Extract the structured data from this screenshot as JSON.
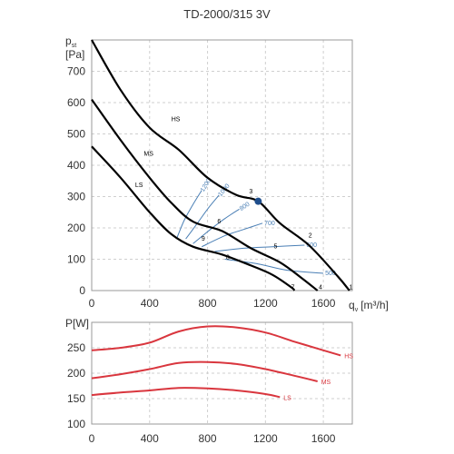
{
  "chart_data": [
    {
      "type": "line",
      "title": "TD-2000/315 3V",
      "ylabel": "p",
      "ylabel_sub": "st",
      "yunit": "[Pa]",
      "xlabel": "q",
      "xlabel_sub": "v",
      "xunit": "[m³/h]",
      "xlim": [
        0,
        1800
      ],
      "ylim": [
        0,
        800
      ],
      "x_ticks": [
        0,
        400,
        800,
        1200,
        1600
      ],
      "y_ticks": [
        0,
        100,
        200,
        300,
        400,
        500,
        600,
        700
      ],
      "grid": true,
      "colors": {
        "curve": "#000000",
        "system": "#4a7fb5",
        "point": "#1f4e8c"
      },
      "series": [
        {
          "name": "HS",
          "points": [
            [
              0,
              800
            ],
            [
              200,
              640
            ],
            [
              400,
              520
            ],
            [
              600,
              450
            ],
            [
              800,
              360
            ],
            [
              1000,
              305
            ],
            [
              1150,
              285
            ],
            [
              1300,
              215
            ],
            [
              1500,
              145
            ],
            [
              1700,
              45
            ],
            [
              1780,
              0
            ]
          ]
        },
        {
          "name": "MS",
          "points": [
            [
              0,
              610
            ],
            [
              200,
              480
            ],
            [
              400,
              360
            ],
            [
              550,
              280
            ],
            [
              700,
              220
            ],
            [
              900,
              190
            ],
            [
              1100,
              135
            ],
            [
              1300,
              90
            ],
            [
              1450,
              40
            ],
            [
              1560,
              0
            ]
          ]
        },
        {
          "name": "LS",
          "points": [
            [
              0,
              460
            ],
            [
              200,
              360
            ],
            [
              400,
              250
            ],
            [
              550,
              180
            ],
            [
              700,
              140
            ],
            [
              900,
              115
            ],
            [
              1100,
              80
            ],
            [
              1250,
              50
            ],
            [
              1380,
              10
            ],
            [
              1400,
              0
            ]
          ]
        }
      ],
      "system_curves": [
        {
          "label": "1200",
          "points": [
            [
              590,
              170
            ],
            [
              640,
              225
            ],
            [
              700,
              275
            ],
            [
              760,
              320
            ]
          ]
        },
        {
          "label": "1000",
          "points": [
            [
              650,
              165
            ],
            [
              730,
              215
            ],
            [
              800,
              260
            ],
            [
              880,
              305
            ]
          ]
        },
        {
          "label": "800",
          "points": [
            [
              700,
              150
            ],
            [
              820,
              195
            ],
            [
              920,
              230
            ],
            [
              1020,
              260
            ]
          ]
        },
        {
          "label": "700",
          "points": [
            [
              760,
              140
            ],
            [
              920,
              175
            ],
            [
              1050,
              195
            ],
            [
              1180,
              215
            ]
          ]
        },
        {
          "label": "600",
          "points": [
            [
              850,
              125
            ],
            [
              1050,
              135
            ],
            [
              1250,
              140
            ],
            [
              1470,
              145
            ]
          ]
        },
        {
          "label": "500",
          "points": [
            [
              920,
              100
            ],
            [
              1150,
              85
            ],
            [
              1350,
              65
            ],
            [
              1600,
              55
            ]
          ]
        }
      ],
      "operating_point": {
        "label": "3",
        "x": 1150,
        "y": 285
      },
      "point_labels": [
        {
          "label": "1",
          "x": 1790,
          "y": 5
        },
        {
          "label": "2",
          "x": 1510,
          "y": 170
        },
        {
          "label": "3",
          "x": 1100,
          "y": 310
        },
        {
          "label": "4",
          "x": 1580,
          "y": 5
        },
        {
          "label": "5",
          "x": 1270,
          "y": 135
        },
        {
          "label": "6",
          "x": 880,
          "y": 215
        },
        {
          "label": "7",
          "x": 1390,
          "y": 5
        },
        {
          "label": "8",
          "x": 940,
          "y": 100
        },
        {
          "label": "9",
          "x": 770,
          "y": 160
        }
      ],
      "series_labels": [
        {
          "text": "HS",
          "x": 550,
          "y": 540
        },
        {
          "text": "MS",
          "x": 360,
          "y": 430
        },
        {
          "text": "LS",
          "x": 300,
          "y": 330
        }
      ]
    },
    {
      "type": "line",
      "ylabel": "P[W]",
      "xlim": [
        0,
        1800
      ],
      "ylim": [
        100,
        300
      ],
      "x_ticks": [
        0,
        400,
        800,
        1200,
        1600
      ],
      "y_ticks": [
        100,
        150,
        200,
        250
      ],
      "grid": true,
      "colors": {
        "curve": "#d9363e"
      },
      "series": [
        {
          "name": "HS",
          "points": [
            [
              0,
              245
            ],
            [
              200,
              250
            ],
            [
              400,
              260
            ],
            [
              600,
              282
            ],
            [
              800,
              292
            ],
            [
              1000,
              290
            ],
            [
              1200,
              280
            ],
            [
              1400,
              262
            ],
            [
              1600,
              245
            ],
            [
              1720,
              235
            ]
          ]
        },
        {
          "name": "MS",
          "points": [
            [
              0,
              190
            ],
            [
              200,
              198
            ],
            [
              400,
              208
            ],
            [
              600,
              220
            ],
            [
              800,
              222
            ],
            [
              1000,
              218
            ],
            [
              1200,
              208
            ],
            [
              1400,
              195
            ],
            [
              1560,
              184
            ]
          ]
        },
        {
          "name": "LS",
          "points": [
            [
              0,
              157
            ],
            [
              200,
              162
            ],
            [
              400,
              166
            ],
            [
              600,
              171
            ],
            [
              800,
              170
            ],
            [
              1000,
              166
            ],
            [
              1200,
              159
            ],
            [
              1300,
              153
            ]
          ]
        }
      ]
    }
  ]
}
